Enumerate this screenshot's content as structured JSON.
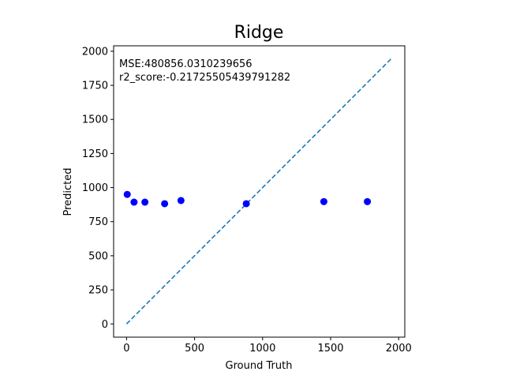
{
  "chart_data": {
    "type": "scatter",
    "title": "Ridge",
    "xlabel": "Ground Truth",
    "ylabel": "Predicted",
    "xlim": [
      -95,
      2045
    ],
    "ylim": [
      -97,
      2040
    ],
    "xticks": [
      0,
      500,
      1000,
      1500,
      2000
    ],
    "yticks": [
      0,
      250,
      500,
      750,
      1000,
      1250,
      1500,
      1750,
      2000
    ],
    "grid": false,
    "annotations": [
      "MSE:480856.0310239656",
      "r2_score:-0.21725505439791282"
    ],
    "points": [
      {
        "x": 5,
        "y": 950
      },
      {
        "x": 55,
        "y": 893
      },
      {
        "x": 135,
        "y": 893
      },
      {
        "x": 280,
        "y": 882
      },
      {
        "x": 400,
        "y": 905
      },
      {
        "x": 880,
        "y": 882
      },
      {
        "x": 1450,
        "y": 897
      },
      {
        "x": 1770,
        "y": 897
      }
    ],
    "reference_line": {
      "x": [
        0,
        1945
      ],
      "y": [
        0,
        1945
      ],
      "style": "dashed"
    },
    "colors": {
      "points": "#0000ff",
      "reference_line": "#1f77b4",
      "axes": "#000000"
    }
  }
}
